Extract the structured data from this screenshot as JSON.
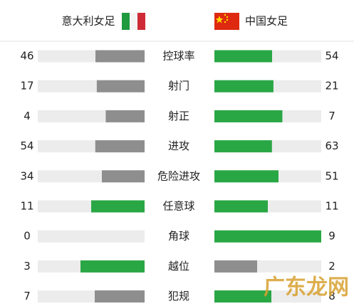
{
  "header": {
    "home": "意大利女足",
    "away": "中国女足"
  },
  "stats": [
    {
      "label": "控球率",
      "home": 46,
      "away": 54
    },
    {
      "label": "射门",
      "home": 17,
      "away": 21
    },
    {
      "label": "射正",
      "home": 4,
      "away": 7
    },
    {
      "label": "进攻",
      "home": 54,
      "away": 63
    },
    {
      "label": "危险进攻",
      "home": 34,
      "away": 51
    },
    {
      "label": "任意球",
      "home": 11,
      "away": 11
    },
    {
      "label": "角球",
      "home": 0,
      "away": 9
    },
    {
      "label": "越位",
      "home": 3,
      "away": 2
    },
    {
      "label": "犯规",
      "home": 7,
      "away": 8
    }
  ],
  "colors": {
    "leading": "#2aa745",
    "trailing": "#8e8e8e",
    "track": "#ececec"
  },
  "watermark": "广东龙网"
}
